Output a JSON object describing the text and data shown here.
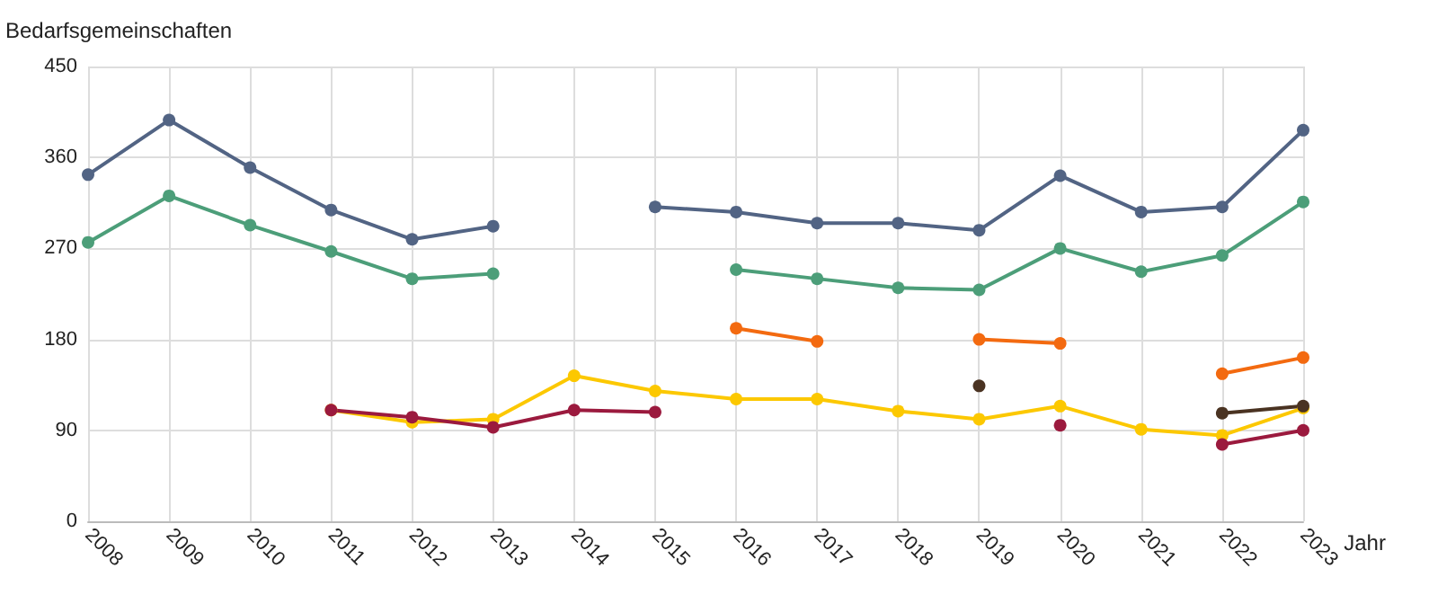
{
  "chart_data": {
    "type": "line",
    "ylabel": "Bedarfsgemeinschaften",
    "xlabel": "Jahr",
    "categories": [
      "2008",
      "2009",
      "2010",
      "2011",
      "2012",
      "2013",
      "2014",
      "2015",
      "2016",
      "2017",
      "2018",
      "2019",
      "2020",
      "2021",
      "2022",
      "2023"
    ],
    "series": [
      {
        "color": "#526484",
        "values": [
          343,
          397,
          350,
          308,
          279,
          292,
          null,
          311,
          306,
          295,
          295,
          288,
          342,
          306,
          311,
          387
        ]
      },
      {
        "color": "#4c9e79",
        "values": [
          276,
          322,
          293,
          267,
          240,
          245,
          null,
          null,
          249,
          240,
          231,
          229,
          270,
          247,
          263,
          316
        ]
      },
      {
        "color": "#f36a10",
        "values": [
          null,
          null,
          null,
          null,
          null,
          null,
          null,
          null,
          191,
          178,
          null,
          180,
          176,
          null,
          146,
          162
        ]
      },
      {
        "color": "#fcc800",
        "values": [
          null,
          null,
          null,
          110,
          98,
          101,
          144,
          129,
          121,
          121,
          109,
          101,
          114,
          91,
          85,
          112
        ]
      },
      {
        "color": "#9b1a3e",
        "values": [
          null,
          null,
          null,
          110,
          103,
          93,
          110,
          108,
          null,
          null,
          null,
          null,
          95,
          null,
          76,
          90
        ]
      },
      {
        "color": "#4a3322",
        "values": [
          null,
          null,
          null,
          null,
          null,
          null,
          null,
          null,
          null,
          null,
          null,
          134,
          null,
          null,
          107,
          114
        ]
      }
    ],
    "ylim": [
      0,
      450
    ],
    "yticks": [
      0,
      90,
      180,
      270,
      360,
      450
    ],
    "grid": true,
    "marker": "circle",
    "line_style": "solid"
  }
}
